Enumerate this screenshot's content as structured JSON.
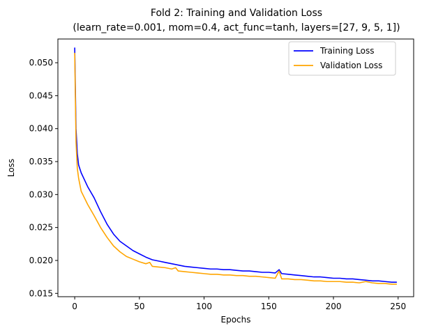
{
  "chart_data": {
    "type": "line",
    "title": "Fold 2: Training and Validation Loss",
    "subtitle": "(learn_rate=0.001, mom=0.4, act_func=tanh, layers=[27, 9, 5, 1])",
    "xlabel": "Epochs",
    "ylabel": "Loss",
    "xlim": [
      -13,
      262
    ],
    "ylim": [
      0.0145,
      0.0536
    ],
    "xticks": [
      0,
      50,
      100,
      150,
      200,
      250
    ],
    "xtick_labels": [
      "0",
      "50",
      "100",
      "150",
      "200",
      "250"
    ],
    "yticks": [
      0.015,
      0.02,
      0.025,
      0.03,
      0.035,
      0.04,
      0.045,
      0.05
    ],
    "ytick_labels": [
      "0.015",
      "0.020",
      "0.025",
      "0.030",
      "0.035",
      "0.040",
      "0.045",
      "0.050"
    ],
    "grid": false,
    "legend_position": "top-right",
    "series": [
      {
        "name": "Training Loss",
        "color": "#0000ff",
        "x": [
          0,
          1,
          2,
          3,
          5,
          10,
          15,
          20,
          25,
          30,
          35,
          40,
          45,
          50,
          55,
          60,
          65,
          70,
          75,
          80,
          85,
          90,
          95,
          100,
          105,
          110,
          115,
          120,
          125,
          130,
          135,
          140,
          145,
          150,
          155,
          158,
          160,
          165,
          170,
          175,
          180,
          185,
          190,
          195,
          200,
          205,
          210,
          215,
          220,
          225,
          230,
          235,
          240,
          245,
          249
        ],
        "y": [
          0.0523,
          0.04,
          0.0362,
          0.0345,
          0.0333,
          0.0312,
          0.0295,
          0.0274,
          0.0255,
          0.024,
          0.0229,
          0.0222,
          0.0215,
          0.021,
          0.0205,
          0.0201,
          0.0199,
          0.0197,
          0.0195,
          0.0193,
          0.0191,
          0.019,
          0.0189,
          0.0188,
          0.0187,
          0.0187,
          0.0186,
          0.0186,
          0.0185,
          0.0184,
          0.0184,
          0.0183,
          0.0182,
          0.0182,
          0.0181,
          0.0186,
          0.018,
          0.0179,
          0.0178,
          0.0177,
          0.0176,
          0.0175,
          0.0175,
          0.0174,
          0.0173,
          0.0173,
          0.0172,
          0.0172,
          0.0171,
          0.017,
          0.0169,
          0.0169,
          0.0168,
          0.0167,
          0.0167
        ]
      },
      {
        "name": "Validation Loss",
        "color": "#ffa500",
        "x": [
          0,
          1,
          2,
          3,
          5,
          10,
          15,
          20,
          25,
          30,
          35,
          40,
          45,
          50,
          55,
          58,
          60,
          65,
          70,
          75,
          78,
          80,
          85,
          90,
          95,
          100,
          105,
          110,
          115,
          120,
          125,
          130,
          135,
          140,
          145,
          150,
          155,
          158,
          160,
          165,
          170,
          175,
          180,
          185,
          190,
          195,
          200,
          205,
          210,
          215,
          220,
          225,
          230,
          235,
          240,
          245,
          249
        ],
        "y": [
          0.0515,
          0.038,
          0.034,
          0.0325,
          0.0305,
          0.0285,
          0.0268,
          0.025,
          0.0235,
          0.0222,
          0.0213,
          0.0206,
          0.0202,
          0.0198,
          0.0195,
          0.0197,
          0.0191,
          0.019,
          0.0189,
          0.0187,
          0.0189,
          0.0184,
          0.0183,
          0.0182,
          0.0181,
          0.018,
          0.0179,
          0.0179,
          0.0178,
          0.0178,
          0.0177,
          0.0177,
          0.0176,
          0.0176,
          0.0175,
          0.0174,
          0.0173,
          0.0184,
          0.0172,
          0.0172,
          0.0171,
          0.0171,
          0.017,
          0.0169,
          0.0169,
          0.0168,
          0.0168,
          0.0168,
          0.0167,
          0.0167,
          0.0166,
          0.0168,
          0.0166,
          0.0165,
          0.0165,
          0.0164,
          0.0164
        ]
      }
    ]
  }
}
